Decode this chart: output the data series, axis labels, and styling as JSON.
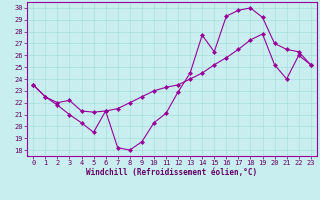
{
  "xlabel": "Windchill (Refroidissement éolien,°C)",
  "bg_color": "#c8eef0",
  "line_color": "#990099",
  "grid_color": "#aadddd",
  "axis_label_color": "#660066",
  "tick_label_color": "#660066",
  "xlim": [
    -0.5,
    23.5
  ],
  "ylim": [
    17.5,
    30.5
  ],
  "xticks": [
    0,
    1,
    2,
    3,
    4,
    5,
    6,
    7,
    8,
    9,
    10,
    11,
    12,
    13,
    14,
    15,
    16,
    17,
    18,
    19,
    20,
    21,
    22,
    23
  ],
  "yticks": [
    18,
    19,
    20,
    21,
    22,
    23,
    24,
    25,
    26,
    27,
    28,
    29,
    30
  ],
  "line1_x": [
    0,
    1,
    2,
    3,
    4,
    5,
    6,
    7,
    8,
    9,
    10,
    11,
    12,
    13,
    14,
    15,
    16,
    17,
    18,
    19,
    20,
    21,
    22,
    23
  ],
  "line1_y": [
    23.5,
    22.5,
    21.8,
    21.0,
    20.3,
    19.5,
    21.3,
    18.2,
    18.0,
    18.7,
    20.3,
    21.1,
    22.9,
    24.5,
    27.7,
    26.3,
    29.3,
    29.8,
    30.0,
    29.2,
    27.0,
    26.5,
    26.3,
    25.2
  ],
  "line2_x": [
    0,
    1,
    2,
    3,
    4,
    5,
    6,
    7,
    8,
    9,
    10,
    11,
    12,
    13,
    14,
    15,
    16,
    17,
    18,
    19,
    20,
    21,
    22,
    23
  ],
  "line2_y": [
    23.5,
    22.5,
    22.0,
    22.2,
    21.3,
    21.2,
    21.3,
    21.5,
    22.0,
    22.5,
    23.0,
    23.3,
    23.5,
    24.0,
    24.5,
    25.2,
    25.8,
    26.5,
    27.3,
    27.8,
    25.2,
    24.0,
    26.0,
    25.2
  ]
}
